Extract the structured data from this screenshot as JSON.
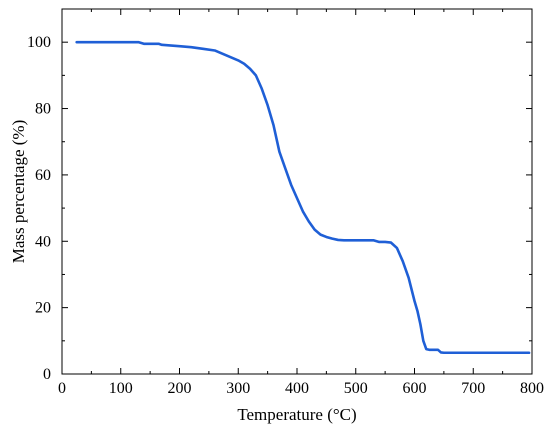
{
  "chart_data": {
    "type": "line",
    "title": "",
    "xlabel": "Temperature (°C)",
    "ylabel": "Mass percentage (%)",
    "xlim": [
      0,
      800
    ],
    "ylim": [
      0,
      110
    ],
    "xticks": [
      0,
      100,
      200,
      300,
      400,
      500,
      600,
      700,
      800
    ],
    "yticks": [
      0,
      20,
      40,
      60,
      80,
      100
    ],
    "grid": false,
    "legend": "none",
    "colors": {
      "line": "#1f5fd6",
      "axis": "#000000"
    },
    "series": [
      {
        "x": [
          25,
          50,
          100,
          130,
          140,
          165,
          170,
          200,
          220,
          240,
          260,
          280,
          300,
          310,
          320,
          330,
          340,
          350,
          360,
          370,
          380,
          390,
          400,
          410,
          420,
          430,
          440,
          450,
          460,
          470,
          480,
          490,
          500,
          510,
          520,
          530,
          540,
          550,
          560,
          570,
          580,
          590,
          600,
          605,
          610,
          615,
          620,
          625,
          630,
          640,
          645,
          650,
          660,
          700,
          750,
          795
        ],
        "values": [
          100,
          100,
          100,
          100,
          99.5,
          99.5,
          99.2,
          98.8,
          98.5,
          98,
          97.5,
          96,
          94.5,
          93.5,
          92,
          90,
          86,
          81,
          75,
          67,
          62,
          57,
          53,
          49,
          46,
          43.5,
          42,
          41.3,
          40.8,
          40.4,
          40.3,
          40.3,
          40.3,
          40.3,
          40.3,
          40.3,
          39.8,
          39.8,
          39.6,
          38,
          34,
          29,
          22,
          19,
          15,
          10,
          7.5,
          7.3,
          7.3,
          7.3,
          6.5,
          6.4,
          6.4,
          6.4,
          6.4,
          6.4
        ]
      }
    ]
  }
}
